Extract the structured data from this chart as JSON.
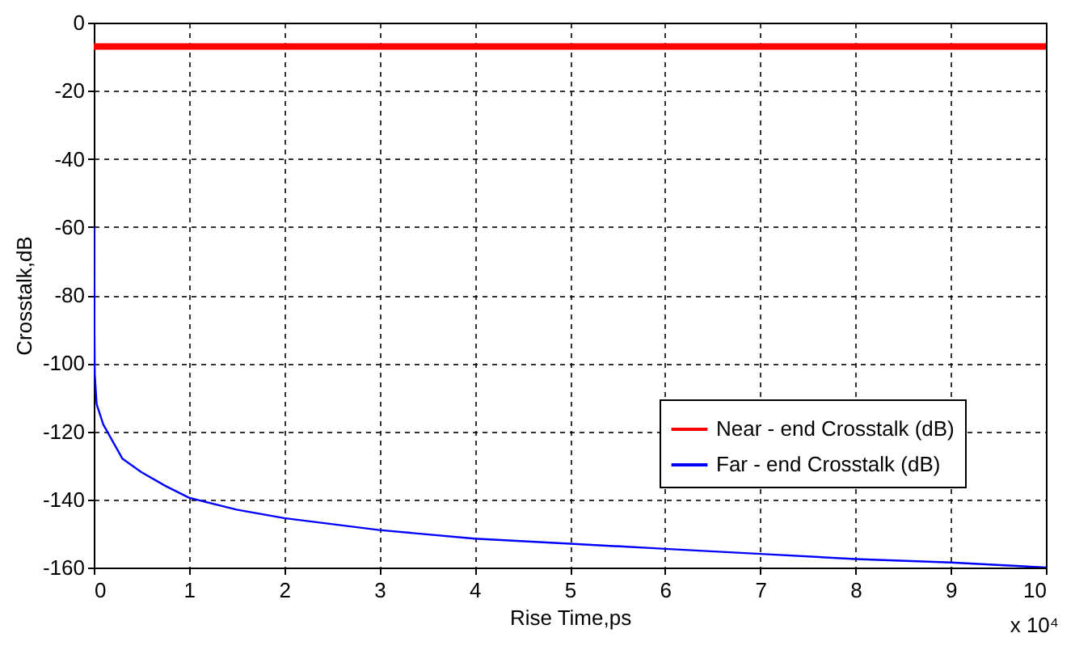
{
  "chart_data": {
    "type": "line",
    "xlabel": "Rise Time,ps",
    "ylabel": "Crosstalk,dB",
    "xlim": [
      0,
      10
    ],
    "xticks": [
      0,
      1,
      2,
      3,
      4,
      5,
      6,
      7,
      8,
      9,
      10
    ],
    "ylim": [
      -160,
      0
    ],
    "yticks": [
      -160,
      -140,
      -120,
      -100,
      -80,
      -60,
      -40,
      -20,
      0
    ],
    "grid": true,
    "legend": "bottom right",
    "annotations": [
      "x 10⁴"
    ],
    "series": [
      {
        "name": "Near - end Crosstalk (dB)",
        "color": "#ff0000",
        "x": [
          0,
          10
        ],
        "values": [
          -7,
          -7
        ]
      },
      {
        "name": "Far - end Crosstalk (dB)",
        "color": "#0000ff",
        "x": [
          0,
          0.01,
          0.03,
          0.1,
          0.2,
          0.3,
          0.5,
          0.75,
          1,
          1.5,
          2,
          3,
          4,
          5,
          6,
          7,
          8,
          9,
          10
        ],
        "values": [
          -60,
          -103,
          -112,
          -118,
          -123,
          -128,
          -132,
          -136,
          -139.5,
          -143,
          -145.5,
          -149,
          -151.5,
          -153,
          -154.5,
          -156,
          -157.5,
          -158.5,
          -160
        ]
      }
    ]
  }
}
